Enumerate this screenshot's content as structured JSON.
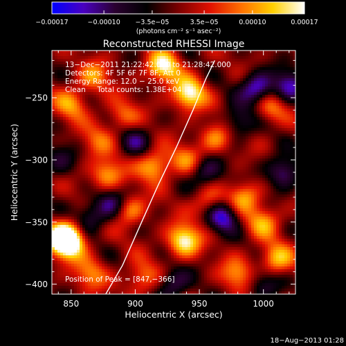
{
  "chart_data": {
    "type": "heatmap",
    "title": "Reconstructed RHESSI Image",
    "xlabel": "Heliocentric X (arcsec)",
    "ylabel": "Heliocentric Y (arcsec)",
    "xlim": [
      835,
      1025
    ],
    "ylim": [
      -408,
      -212
    ],
    "xticks": [
      850,
      900,
      950,
      1000
    ],
    "xtick_labels": [
      "850",
      "900",
      "950",
      "1000"
    ],
    "yticks": [
      -250,
      -300,
      -350,
      -400
    ],
    "ytick_labels": [
      "−250",
      "−300",
      "−350",
      "−400"
    ],
    "colorbar": {
      "range": [
        -0.00017,
        0.00017
      ],
      "ticks": [
        -0.00017,
        -0.0001,
        -3.5e-05,
        3.5e-05,
        0.0001,
        0.00017
      ],
      "tick_labels": [
        "−0.00017",
        "−0.00010",
        "−3.5e−05",
        "3.5e−05",
        "0.00010",
        "0.00017"
      ],
      "unit_label": "(photons cm⁻² s⁻¹ asec⁻²)",
      "colormap": [
        "#0000ff",
        "#4a00c0",
        "#2a0030",
        "#000000",
        "#7a0000",
        "#e01000",
        "#ff7000",
        "#ffd000",
        "#ffffff"
      ]
    },
    "annotations": [
      "13−Dec−2011 21:22:42.000 to 21:28:42.000",
      "Detectors: 4F 5F 6F 7F 8F, Att 0",
      "Energy Range: 12.0 − 25.0 keV",
      "Clean     Total counts: 1.38E+04"
    ],
    "peak_label": "Position of Peak = [847,−366]",
    "limb_curve": {
      "x": [
        877,
        890,
        905,
        918,
        932,
        945,
        955,
        962
      ],
      "y": [
        -408,
        -385,
        -350,
        -320,
        -290,
        -260,
        -235,
        -220
      ]
    },
    "hot_spots": [
      {
        "x": 942,
        "y": -247,
        "v": 0.00017
      },
      {
        "x": 922,
        "y": -225,
        "v": 0.00016
      },
      {
        "x": 845,
        "y": -362,
        "v": 0.00017
      },
      {
        "x": 847,
        "y": -367,
        "v": 0.00017
      },
      {
        "x": 938,
        "y": -365,
        "v": 0.00017
      },
      {
        "x": 915,
        "y": -305,
        "v": 0.00013
      },
      {
        "x": 878,
        "y": -312,
        "v": 0.00012
      },
      {
        "x": 850,
        "y": -255,
        "v": 0.0001
      },
      {
        "x": 868,
        "y": -233,
        "v": 9e-05
      },
      {
        "x": 890,
        "y": -265,
        "v": 8e-05
      },
      {
        "x": 963,
        "y": -282,
        "v": 0.0001
      },
      {
        "x": 985,
        "y": -330,
        "v": 0.00011
      },
      {
        "x": 1005,
        "y": -258,
        "v": 9e-05
      },
      {
        "x": 1010,
        "y": -380,
        "v": 0.00012
      },
      {
        "x": 980,
        "y": -392,
        "v": 0.0001
      },
      {
        "x": 895,
        "y": -340,
        "v": 0.00011
      },
      {
        "x": 865,
        "y": -392,
        "v": 9e-05
      },
      {
        "x": 957,
        "y": -335,
        "v": 9e-05
      },
      {
        "x": 1000,
        "y": -350,
        "v": 0.0001
      },
      {
        "x": 905,
        "y": -395,
        "v": 9e-05
      },
      {
        "x": 940,
        "y": -300,
        "v": 8e-05
      },
      {
        "x": 870,
        "y": -285,
        "v": 7e-05
      }
    ],
    "cold_spots": [
      {
        "x": 995,
        "y": -243,
        "v": -0.00015
      },
      {
        "x": 1020,
        "y": -240,
        "v": -0.00012
      },
      {
        "x": 968,
        "y": -345,
        "v": -0.00015
      },
      {
        "x": 882,
        "y": -335,
        "v": -0.00011
      },
      {
        "x": 955,
        "y": -310,
        "v": -0.0001
      },
      {
        "x": 930,
        "y": -400,
        "v": -0.0001
      },
      {
        "x": 1015,
        "y": -310,
        "v": -0.00012
      },
      {
        "x": 900,
        "y": -285,
        "v": -8e-05
      },
      {
        "x": 865,
        "y": -345,
        "v": -8e-05
      },
      {
        "x": 980,
        "y": -270,
        "v": -9e-05
      },
      {
        "x": 1000,
        "y": -400,
        "v": -8e-05
      },
      {
        "x": 840,
        "y": -300,
        "v": -7e-05
      }
    ]
  },
  "footer_timestamp": "18−Aug−2013 01:28"
}
